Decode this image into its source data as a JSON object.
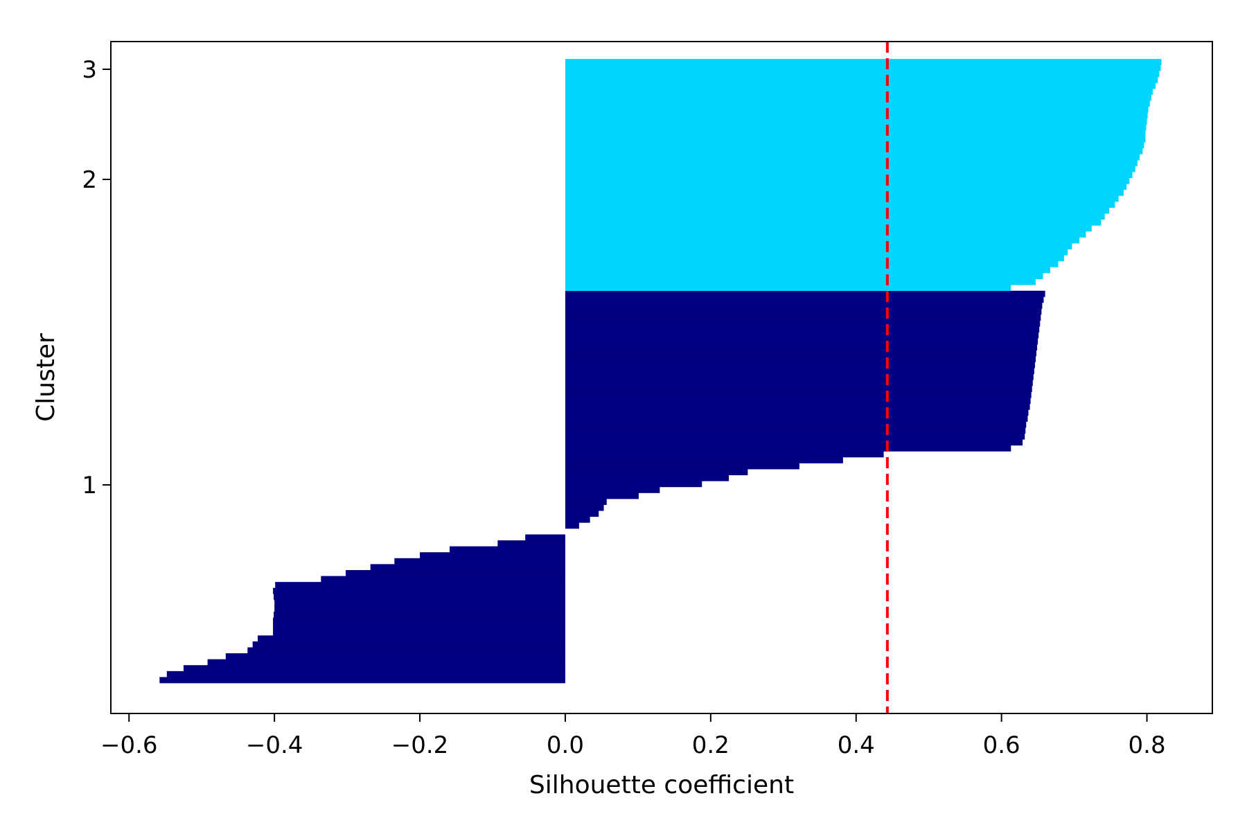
{
  "chart_data": {
    "type": "bar",
    "orientation": "horizontal",
    "title": "",
    "xlabel": "Silhouette coefficient",
    "ylabel": "Cluster",
    "xlim": [
      -0.625,
      0.89
    ],
    "x_ticks": [
      -0.6,
      -0.4,
      -0.2,
      0.0,
      0.2,
      0.4,
      0.6,
      0.8
    ],
    "x_tick_labels": [
      "−0.6",
      "−0.4",
      "−0.2",
      "0.0",
      "0.2",
      "0.4",
      "0.6",
      "0.8"
    ],
    "y_tick_labels": [
      "1",
      "2",
      "3"
    ],
    "grid": false,
    "legend": "none",
    "average_line": {
      "value": 0.443,
      "color": "#ff0000",
      "style": "dashed"
    },
    "series": [
      {
        "cluster": "1",
        "color": "#000080",
        "values": [
          -0.558,
          -0.548,
          -0.525,
          -0.492,
          -0.467,
          -0.437,
          -0.43,
          -0.423,
          -0.402,
          -0.402,
          -0.402,
          -0.401,
          -0.4,
          -0.4,
          -0.401,
          -0.402,
          -0.399,
          -0.336,
          -0.302,
          -0.268,
          -0.235,
          -0.2,
          -0.159,
          -0.093,
          -0.055,
          0.0,
          0.019,
          0.034,
          0.046,
          0.053,
          0.057,
          0.101,
          0.13,
          0.188,
          0.225,
          0.251,
          0.322,
          0.382,
          0.438,
          0.613,
          0.629,
          0.632,
          0.633,
          0.634,
          0.636,
          0.637,
          0.639,
          0.64,
          0.641,
          0.642,
          0.643,
          0.644,
          0.645,
          0.646,
          0.647,
          0.648,
          0.649,
          0.65,
          0.651,
          0.652,
          0.653,
          0.654,
          0.655,
          0.656,
          0.658,
          0.66
        ]
      },
      {
        "cluster": "2",
        "color": "#00d5ff",
        "values": [
          0.613,
          0.647,
          0.657,
          0.667,
          0.678,
          0.686,
          0.691,
          0.697,
          0.707,
          0.716,
          0.724,
          0.737,
          0.742,
          0.748,
          0.756,
          0.761,
          0.768,
          0.772,
          0.776,
          0.78,
          0.784,
          0.787,
          0.79,
          0.794,
          0.796,
          0.798,
          0.798,
          0.799,
          0.8,
          0.801,
          0.802,
          0.804,
          0.806,
          0.808,
          0.812,
          0.815,
          0.817,
          0.819,
          0.82
        ]
      }
    ]
  }
}
